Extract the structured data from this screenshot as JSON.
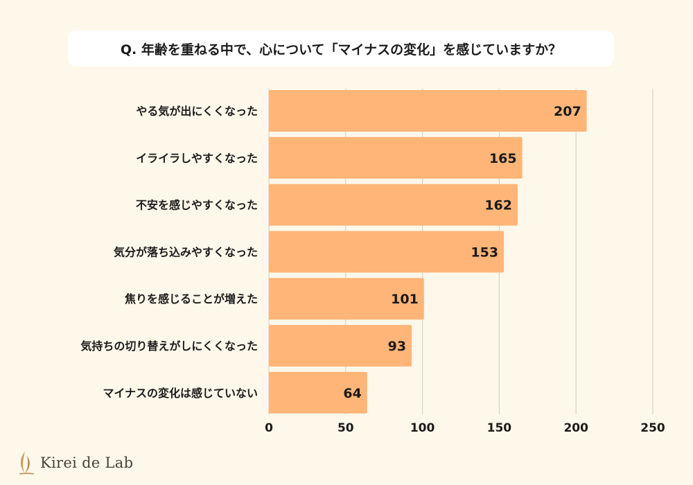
{
  "chart_data": {
    "type": "bar",
    "orientation": "horizontal",
    "title": "Q. 年齢を重ねる中で、心について「マイナスの変化」を感じていますか？",
    "categories": [
      "やる気が出にくくなった",
      "イライラしやすくなった",
      "不安を感じやすくなった",
      "気分が落ち込みやすくなった",
      "焦りを感じることが増えた",
      "気持ちの切り替えがしにくくなった",
      "マイナスの変化は感じていない"
    ],
    "values": [
      207,
      165,
      162,
      153,
      101,
      93,
      64
    ],
    "xlim": [
      0,
      250
    ],
    "xticks": [
      0,
      50,
      100,
      150,
      200,
      250
    ],
    "grid": true,
    "bar_color": "#ffb577",
    "grid_color": "#cfcabe"
  },
  "brand": {
    "name": "Kirei de Lab",
    "logo_icon": "feather-icon"
  }
}
